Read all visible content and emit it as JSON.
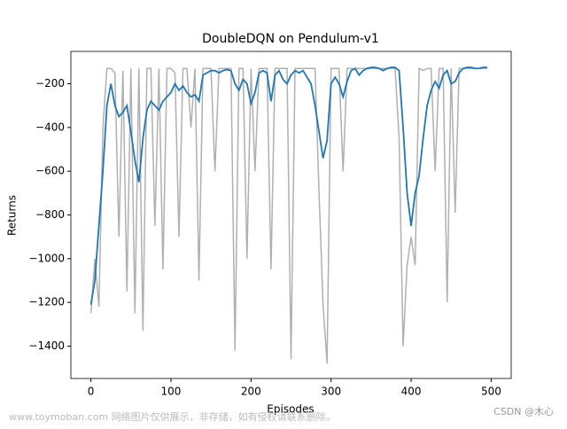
{
  "chart_data": {
    "type": "line",
    "title": "DoubleDQN on Pendulum-v1",
    "xlabel": "Episodes",
    "ylabel": "Returns",
    "x": [
      0,
      5,
      10,
      15,
      20,
      25,
      30,
      35,
      40,
      45,
      50,
      55,
      60,
      65,
      70,
      75,
      80,
      85,
      90,
      95,
      100,
      105,
      110,
      115,
      120,
      125,
      130,
      135,
      140,
      145,
      150,
      155,
      160,
      165,
      170,
      175,
      180,
      185,
      190,
      195,
      200,
      205,
      210,
      215,
      220,
      225,
      230,
      235,
      240,
      245,
      250,
      255,
      260,
      265,
      270,
      275,
      280,
      285,
      290,
      295,
      300,
      305,
      310,
      315,
      320,
      325,
      330,
      335,
      340,
      345,
      350,
      355,
      360,
      365,
      370,
      375,
      380,
      385,
      390,
      395,
      400,
      405,
      410,
      415,
      420,
      425,
      430,
      435,
      440,
      445,
      450,
      455,
      460,
      465,
      470,
      475,
      480,
      485,
      490,
      495
    ],
    "series": [
      {
        "color": "#b0b0b0",
        "values": [
          -1250,
          -1000,
          -1220,
          -400,
          -130,
          -130,
          -150,
          -900,
          -140,
          -1150,
          -130,
          -1250,
          -130,
          -1330,
          -130,
          -130,
          -850,
          -130,
          -1050,
          -130,
          -130,
          -150,
          -900,
          -130,
          -130,
          -400,
          -130,
          -1100,
          -130,
          -130,
          -130,
          -600,
          -130,
          -130,
          -130,
          -130,
          -1420,
          -130,
          -130,
          -1000,
          -130,
          -600,
          -130,
          -130,
          -130,
          -1050,
          -130,
          -130,
          -130,
          -130,
          -1460,
          -130,
          -130,
          -130,
          -130,
          -130,
          -130,
          -700,
          -1210,
          -1480,
          -130,
          -130,
          -130,
          -600,
          -130,
          -130,
          -130,
          -130,
          -130,
          -130,
          -130,
          -130,
          -130,
          -130,
          -130,
          -130,
          -130,
          -450,
          -1400,
          -1030,
          -900,
          -1030,
          -130,
          -140,
          -130,
          -130,
          -600,
          -130,
          -130,
          -1200,
          -130,
          -790,
          -130,
          -130,
          -130,
          -130,
          -130,
          -130,
          -130,
          -130
        ]
      },
      {
        "color": "#1f77b4",
        "values": [
          -1210,
          -1100,
          -850,
          -600,
          -300,
          -200,
          -300,
          -350,
          -330,
          -300,
          -420,
          -550,
          -650,
          -450,
          -320,
          -280,
          -300,
          -320,
          -280,
          -260,
          -240,
          -200,
          -230,
          -210,
          -240,
          -260,
          -250,
          -280,
          -160,
          -150,
          -140,
          -140,
          -150,
          -140,
          -135,
          -140,
          -200,
          -230,
          -180,
          -200,
          -290,
          -240,
          -150,
          -140,
          -150,
          -280,
          -160,
          -140,
          -180,
          -200,
          -160,
          -140,
          -150,
          -140,
          -170,
          -200,
          -300,
          -420,
          -540,
          -460,
          -200,
          -170,
          -200,
          -260,
          -190,
          -140,
          -130,
          -160,
          -140,
          -130,
          -125,
          -125,
          -130,
          -140,
          -130,
          -125,
          -125,
          -140,
          -400,
          -700,
          -850,
          -700,
          -620,
          -450,
          -300,
          -230,
          -190,
          -220,
          -160,
          -140,
          -200,
          -190,
          -150,
          -130,
          -125,
          -125,
          -130,
          -130,
          -125,
          -125
        ]
      }
    ],
    "xlim": [
      -25,
      525
    ],
    "ylim": [
      -1548,
      -52
    ],
    "xticks": [
      0,
      100,
      200,
      300,
      400,
      500
    ],
    "yticks": [
      {
        "value": -1400,
        "label": "−1400"
      },
      {
        "value": -1200,
        "label": "−1200"
      },
      {
        "value": -1000,
        "label": "−1000"
      },
      {
        "value": -800,
        "label": "−800"
      },
      {
        "value": -600,
        "label": "−600"
      },
      {
        "value": -400,
        "label": "−400"
      },
      {
        "value": -200,
        "label": "−200"
      }
    ],
    "grid": false
  },
  "watermark": {
    "left": "www.toymoban.com 网络图片仅供展示，非存储，如有侵权请联系删除。",
    "right": "CSDN @木心"
  }
}
